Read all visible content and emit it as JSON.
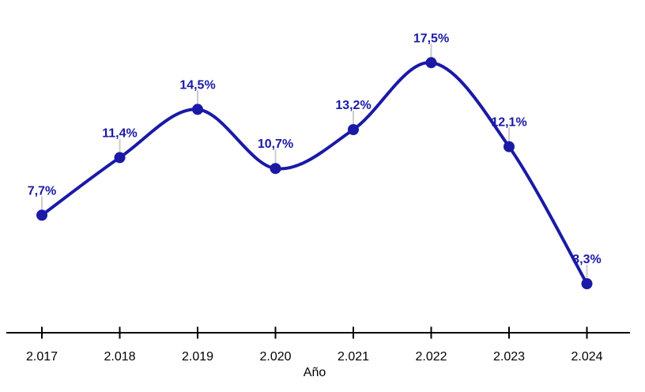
{
  "chart_data": {
    "type": "line",
    "categories": [
      "2.017",
      "2.018",
      "2.019",
      "2.020",
      "2.021",
      "2.022",
      "2.023",
      "2.024"
    ],
    "values": [
      7.7,
      11.4,
      14.5,
      10.7,
      13.2,
      17.5,
      12.1,
      3.3
    ],
    "point_labels": [
      "7,7%",
      "11,4%",
      "14,5%",
      "10,7%",
      "13,2%",
      "17,5%",
      "12,1%",
      "3,3%"
    ],
    "title": "",
    "xlabel": "Año",
    "ylabel": "",
    "ylim": [
      0,
      20
    ],
    "grid": false,
    "legend": false,
    "curve": "smooth",
    "colors": {
      "line": "#1a1aa6",
      "marker": "#1a1aa6",
      "point_label": "#1a1aa6",
      "leader": "#cccccc",
      "axis": "#000000",
      "tick_label": "#000000",
      "background": "#ffffff"
    }
  }
}
